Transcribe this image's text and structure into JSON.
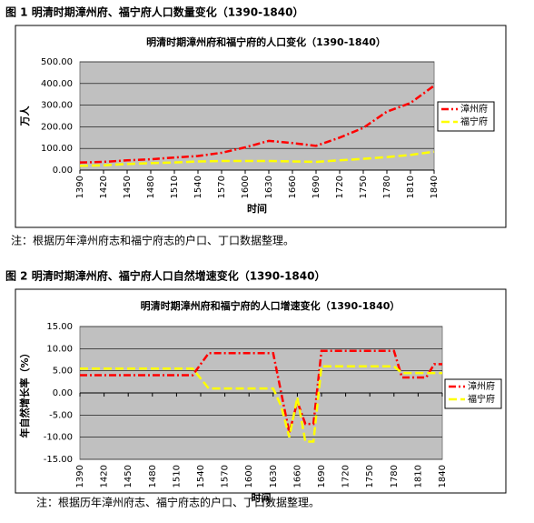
{
  "chart_data": [
    {
      "type": "line",
      "caption": "图 1 明清时期漳州府、福宁府人口数量变化（1390-1840）",
      "title": "明清时期漳州府和福宁府的人口变化（1390-1840）",
      "y_label": "万人",
      "x_label": "时间",
      "note": "注：根据历年漳州府志和福宁府志的户口、丁口数据整理。",
      "x": [
        1390,
        1420,
        1450,
        1480,
        1510,
        1540,
        1570,
        1600,
        1630,
        1660,
        1690,
        1720,
        1750,
        1780,
        1810,
        1840
      ],
      "xlim": [
        1390,
        1840
      ],
      "xticks": [
        1390,
        1420,
        1450,
        1480,
        1510,
        1540,
        1570,
        1600,
        1630,
        1660,
        1690,
        1720,
        1750,
        1780,
        1810,
        1840
      ],
      "ylim": [
        0,
        500
      ],
      "yticks": [
        {
          "value": 0,
          "label": "0.00"
        },
        {
          "value": 100,
          "label": "100.00"
        },
        {
          "value": 200,
          "label": "200.00"
        },
        {
          "value": 300,
          "label": "300.00"
        },
        {
          "value": 400,
          "label": "400.00"
        },
        {
          "value": 500,
          "label": "500.00"
        }
      ],
      "grid": true,
      "series": [
        {
          "name": "漳州府",
          "color": "#ff0000",
          "values": [
            35,
            38,
            45,
            50,
            58,
            65,
            80,
            105,
            135,
            125,
            112,
            150,
            195,
            270,
            310,
            390
          ]
        },
        {
          "name": "福宁府",
          "color": "#ffff00",
          "values": [
            20,
            22,
            28,
            32,
            35,
            40,
            42,
            42,
            42,
            40,
            38,
            45,
            52,
            60,
            70,
            85
          ]
        }
      ]
    },
    {
      "type": "line",
      "caption": "图 2  明清时期漳州府、福宁府人口自然增速变化（1390-1840）",
      "title": "明清时期漳州府和福宁府的人口增速变化（1390-1840）",
      "y_label": "年自然增长率（%）",
      "x_label": "时间",
      "note": "注：根据历年漳州府志、福宁府志的户口、丁口数据整理。",
      "x": [
        1390,
        1530,
        1550,
        1620,
        1630,
        1640,
        1650,
        1660,
        1670,
        1680,
        1690,
        1780,
        1790,
        1820,
        1830,
        1840
      ],
      "xlim": [
        1390,
        1840
      ],
      "xticks": [
        1390,
        1420,
        1450,
        1480,
        1510,
        1540,
        1570,
        1600,
        1630,
        1660,
        1690,
        1720,
        1750,
        1780,
        1810,
        1840
      ],
      "ylim": [
        -15,
        15
      ],
      "yticks": [
        {
          "value": -15,
          "label": "-15.00"
        },
        {
          "value": -10,
          "label": "-10.00"
        },
        {
          "value": -5,
          "label": "-5.00"
        },
        {
          "value": 0,
          "label": "0.00"
        },
        {
          "value": 5,
          "label": "5.00"
        },
        {
          "value": 10,
          "label": "10.00"
        },
        {
          "value": 15,
          "label": "15.00"
        }
      ],
      "grid": true,
      "series": [
        {
          "name": "漳州府",
          "color": "#ff0000",
          "values": [
            4,
            4,
            9,
            9,
            9,
            0,
            -9,
            -2,
            -7,
            -7,
            9.5,
            9.5,
            3.5,
            3.5,
            6.5,
            6.5
          ]
        },
        {
          "name": "福宁府",
          "color": "#ffff00",
          "values": [
            5.5,
            5.5,
            1,
            1,
            1,
            -3,
            -10,
            -1,
            -11,
            -11,
            6,
            6,
            4.5,
            4.5,
            4.5,
            4.5
          ]
        }
      ]
    }
  ]
}
